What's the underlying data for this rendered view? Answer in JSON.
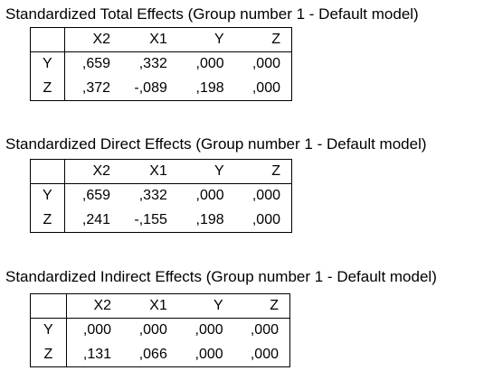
{
  "sections": [
    {
      "title": "Standardized Total Effects (Group number 1 - Default model)",
      "columns": [
        "X2",
        "X1",
        "Y",
        "Z"
      ],
      "rows": [
        {
          "label": "Y",
          "values": [
            ",659",
            ",332",
            ",000",
            ",000"
          ]
        },
        {
          "label": "Z",
          "values": [
            ",372",
            "-,089",
            ",198",
            ",000"
          ]
        }
      ]
    },
    {
      "title": "Standardized Direct Effects (Group number 1 - Default model)",
      "columns": [
        "X2",
        "X1",
        "Y",
        "Z"
      ],
      "rows": [
        {
          "label": "Y",
          "values": [
            ",659",
            ",332",
            ",000",
            ",000"
          ]
        },
        {
          "label": "Z",
          "values": [
            ",241",
            "-,155",
            ",198",
            ",000"
          ]
        }
      ]
    },
    {
      "title": "Standardized Indirect Effects (Group number 1 - Default model)",
      "columns": [
        "X2",
        "X1",
        "Y",
        "Z"
      ],
      "rows": [
        {
          "label": "Y",
          "values": [
            ",000",
            ",000",
            ",000",
            ",000"
          ]
        },
        {
          "label": "Z",
          "values": [
            ",131",
            ",066",
            ",000",
            ",000"
          ]
        }
      ]
    }
  ]
}
